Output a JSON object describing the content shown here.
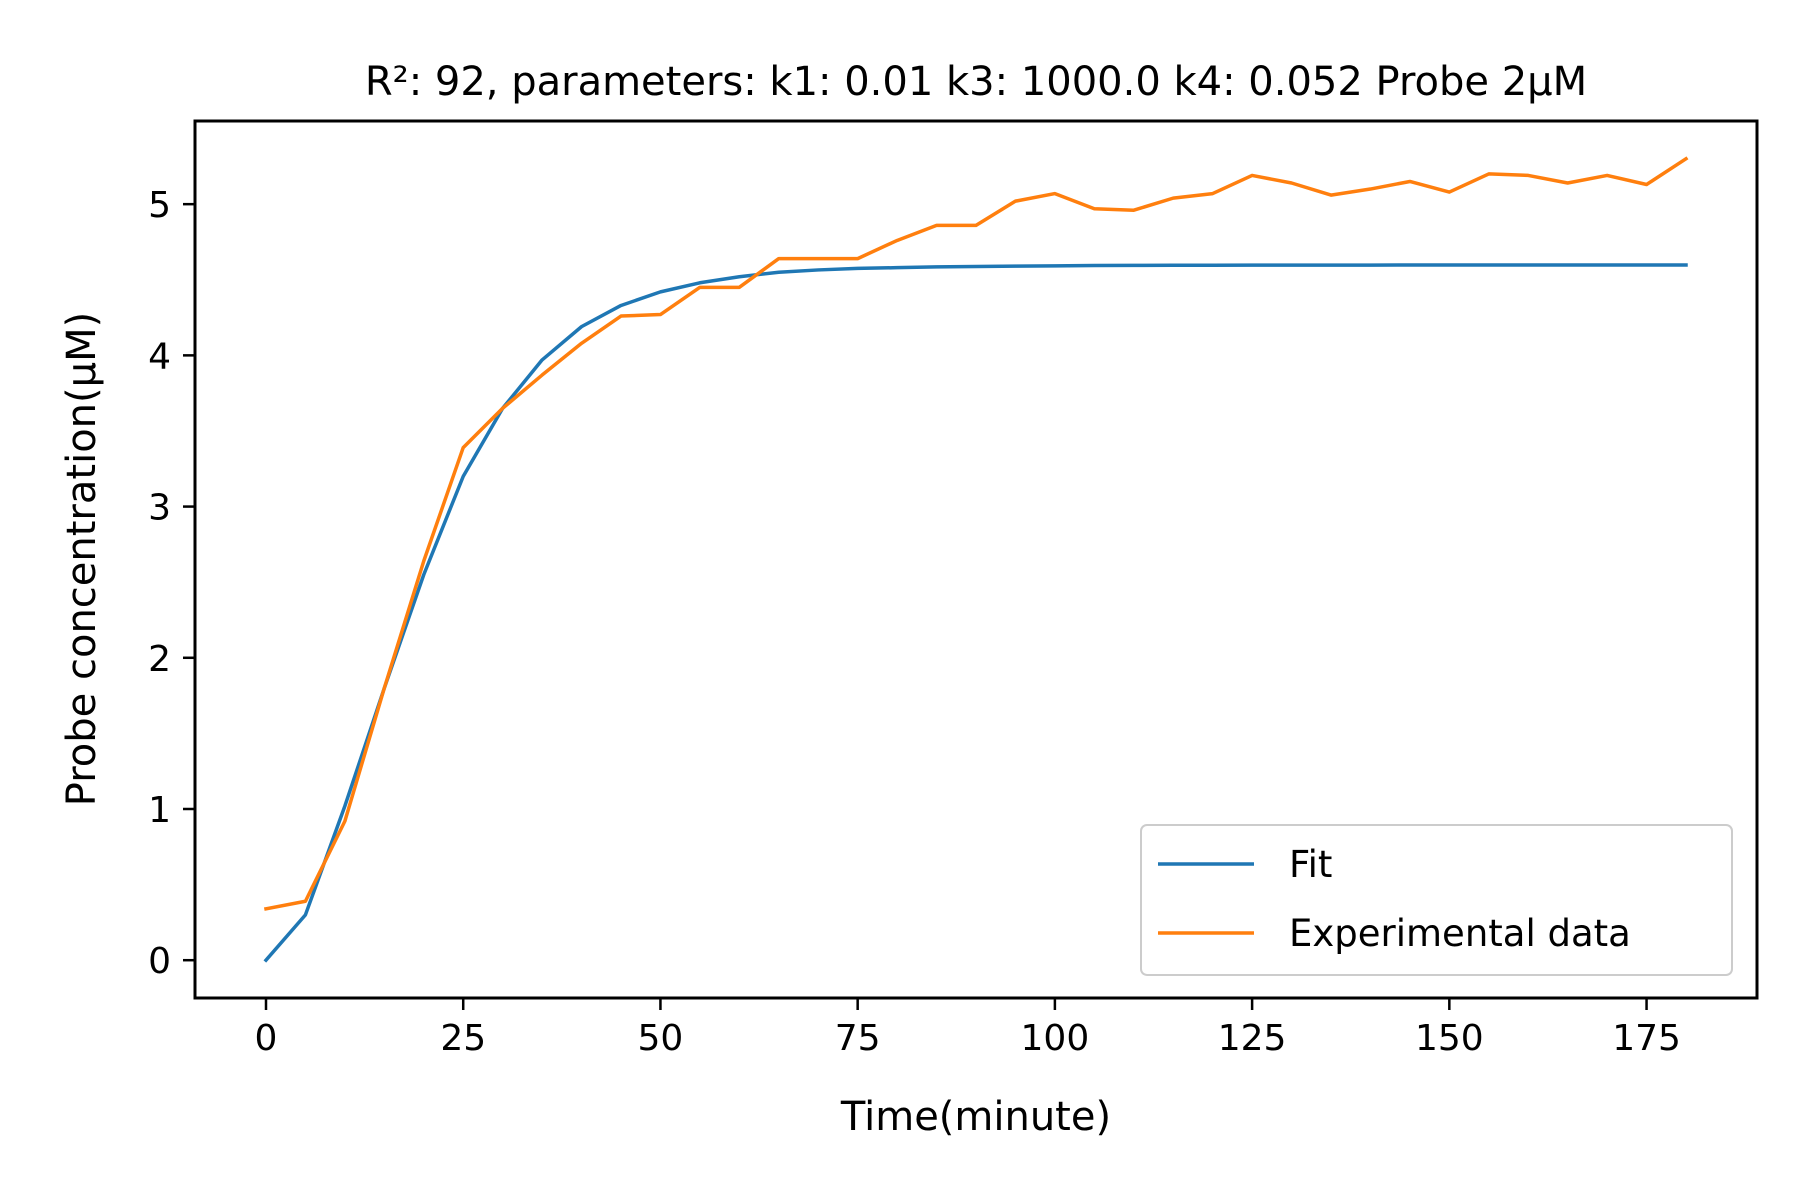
{
  "chart_data": {
    "type": "line",
    "title": "R²: 92, parameters: k1: 0.01 k3: 1000.0 k4: 0.052 Probe 2µM",
    "xlabel": "Time(minute)",
    "ylabel": "Probe concentration(µM)",
    "xlim": [
      -9,
      189
    ],
    "ylim": [
      -0.25,
      5.55
    ],
    "xticks": [
      0,
      25,
      50,
      75,
      100,
      125,
      150,
      175
    ],
    "yticks": [
      0,
      1,
      2,
      3,
      4,
      5
    ],
    "grid": false,
    "legend_position": "lower-right",
    "series": [
      {
        "name": "Fit",
        "color": "#1f77b4",
        "x": [
          0,
          5,
          10,
          15,
          20,
          25,
          30,
          35,
          40,
          45,
          50,
          55,
          60,
          65,
          70,
          75,
          80,
          85,
          90,
          95,
          100,
          105,
          110,
          115,
          120,
          125,
          130,
          135,
          140,
          145,
          150,
          155,
          160,
          165,
          170,
          175,
          180
        ],
        "y": [
          0.0,
          0.3,
          1.02,
          1.8,
          2.55,
          3.2,
          3.65,
          3.97,
          4.19,
          4.33,
          4.42,
          4.48,
          4.52,
          4.55,
          4.565,
          4.575,
          4.58,
          4.585,
          4.588,
          4.59,
          4.592,
          4.594,
          4.595,
          4.596,
          4.596,
          4.597,
          4.597,
          4.597,
          4.597,
          4.598,
          4.598,
          4.598,
          4.598,
          4.598,
          4.598,
          4.598,
          4.598
        ]
      },
      {
        "name": "Experimental data",
        "color": "#ff7f0e",
        "x": [
          0,
          5,
          10,
          15,
          20,
          25,
          30,
          35,
          40,
          45,
          50,
          55,
          60,
          65,
          70,
          75,
          80,
          85,
          90,
          95,
          100,
          105,
          110,
          115,
          120,
          125,
          130,
          135,
          140,
          145,
          150,
          155,
          160,
          165,
          170,
          175,
          180
        ],
        "y": [
          0.34,
          0.39,
          0.92,
          1.8,
          2.64,
          3.39,
          3.65,
          3.87,
          4.08,
          4.26,
          4.27,
          4.45,
          4.45,
          4.64,
          4.64,
          4.64,
          4.76,
          4.86,
          4.86,
          5.02,
          5.07,
          4.97,
          4.96,
          5.04,
          5.07,
          5.19,
          5.14,
          5.06,
          5.1,
          5.15,
          5.08,
          5.2,
          5.19,
          5.14,
          5.19,
          5.13,
          5.3
        ]
      }
    ]
  }
}
